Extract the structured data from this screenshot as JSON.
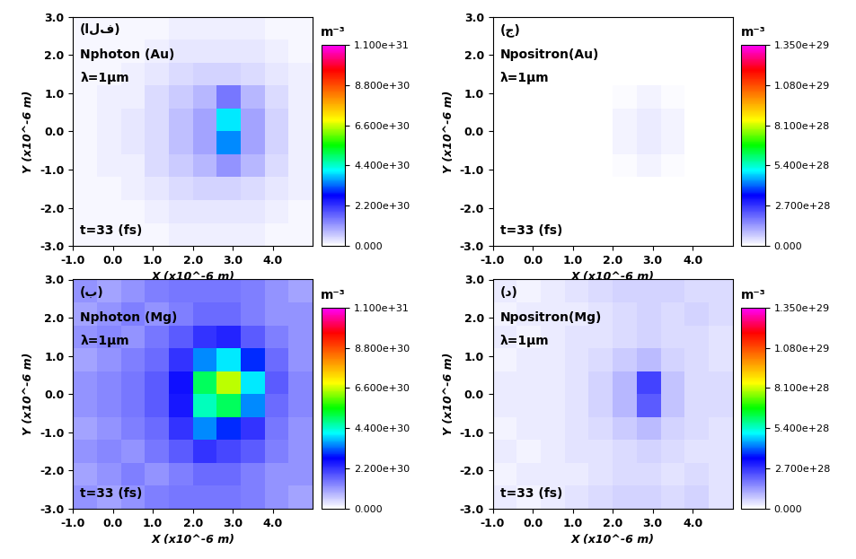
{
  "chart_data": [
    {
      "type": "heatmap",
      "panel": "(الف)",
      "quantity": "Nphoton (Au)",
      "wavelength": "λ=1μm",
      "time": "t=33 (fs)",
      "x_label": "X (x10^-6 m)",
      "y_label": "Y (x10^-6 m)",
      "xlim": [
        -1.0,
        5.0
      ],
      "ylim": [
        -3.0,
        3.0
      ],
      "xticks": [
        -1.0,
        0.0,
        1.0,
        2.0,
        3.0,
        4.0
      ],
      "yticks": [
        -3.0,
        -2.0,
        -1.0,
        0.0,
        1.0,
        2.0,
        3.0
      ],
      "cells": [
        [
          1e+29,
          1e+29,
          1e+29,
          1e+29,
          2e+29,
          2e+29,
          2e+29,
          2e+29,
          1e+29,
          1e+29
        ],
        [
          1e+29,
          1e+29,
          1e+29,
          2e+29,
          3e+29,
          3e+29,
          3e+29,
          3e+29,
          2e+29,
          1e+29
        ],
        [
          1e+29,
          1e+29,
          2e+29,
          3e+29,
          4e+29,
          5e+29,
          5e+29,
          4e+29,
          3e+29,
          2e+29
        ],
        [
          1e+29,
          2e+29,
          2e+29,
          4e+29,
          6e+29,
          8e+29,
          1.2e+30,
          8e+29,
          4e+29,
          2e+29
        ],
        [
          1e+29,
          2e+29,
          3e+29,
          4e+29,
          7e+29,
          1e+30,
          3.5e+30,
          1e+30,
          5e+29,
          2e+29
        ],
        [
          1e+29,
          2e+29,
          3e+29,
          4e+29,
          7e+29,
          1e+30,
          4e+30,
          1e+30,
          5e+29,
          2e+29
        ],
        [
          1e+29,
          2e+29,
          2e+29,
          4e+29,
          6e+29,
          8e+29,
          1.5e+30,
          8e+29,
          4e+29,
          2e+29
        ],
        [
          1e+29,
          1e+29,
          2e+29,
          3e+29,
          4e+29,
          5e+29,
          5e+29,
          4e+29,
          3e+29,
          2e+29
        ],
        [
          1e+29,
          1e+29,
          1e+29,
          2e+29,
          3e+29,
          3e+29,
          3e+29,
          3e+29,
          2e+29,
          1e+29
        ],
        [
          1e+29,
          1e+29,
          1e+29,
          1e+29,
          2e+29,
          2e+29,
          2e+29,
          2e+29,
          1e+29,
          1e+29
        ]
      ],
      "colorbar": {
        "label": "m⁻³",
        "range": [
          0,
          1.1e+31
        ],
        "ticks": [
          {
            "value": 1.1e+31,
            "label": "1.100e+31"
          },
          {
            "value": 8.8e+30,
            "label": "8.800e+30"
          },
          {
            "value": 6.6e+30,
            "label": "6.600e+30"
          },
          {
            "value": 4.4e+30,
            "label": "4.400e+30"
          },
          {
            "value": 2.2e+30,
            "label": "2.200e+30"
          },
          {
            "value": 0,
            "label": "0.000"
          }
        ]
      }
    },
    {
      "type": "heatmap",
      "panel": "(ج)",
      "quantity": "Npositron(Au)",
      "wavelength": "λ=1μm",
      "time": "t=33 (fs)",
      "x_label": "X (x10^-6 m)",
      "y_label": "Y (x10^-6 m)",
      "xlim": [
        -1.0,
        5.0
      ],
      "ylim": [
        -3.0,
        3.0
      ],
      "xticks": [
        -1.0,
        0.0,
        1.0,
        2.0,
        3.0,
        4.0
      ],
      "yticks": [
        -3.0,
        -2.0,
        -1.0,
        0.0,
        1.0,
        2.0,
        3.0
      ],
      "cells": [
        [
          0,
          0,
          0,
          0,
          0,
          0,
          0,
          0,
          0,
          0
        ],
        [
          0,
          0,
          0,
          0,
          0,
          0,
          0,
          0,
          0,
          0
        ],
        [
          0,
          0,
          0,
          0,
          0,
          5e+26,
          5e+26,
          0,
          0,
          0
        ],
        [
          0,
          0,
          0,
          0,
          5e+26,
          1e+27,
          2e+27,
          1e+27,
          0,
          0
        ],
        [
          0,
          0,
          0,
          0,
          5e+26,
          2e+27,
          3e+27,
          2e+27,
          5e+26,
          0
        ],
        [
          0,
          0,
          0,
          0,
          5e+26,
          2e+27,
          3e+27,
          2e+27,
          5e+26,
          0
        ],
        [
          0,
          0,
          0,
          0,
          0,
          1e+27,
          2e+27,
          1e+27,
          0,
          0
        ],
        [
          0,
          0,
          0,
          0,
          0,
          5e+26,
          5e+26,
          0,
          0,
          0
        ],
        [
          0,
          0,
          0,
          0,
          0,
          0,
          0,
          0,
          0,
          0
        ],
        [
          0,
          0,
          0,
          0,
          0,
          0,
          0,
          0,
          0,
          0
        ]
      ],
      "colorbar": {
        "label": "m⁻³",
        "range": [
          0,
          1.35e+29
        ],
        "ticks": [
          {
            "value": 1.35e+29,
            "label": "1.350e+29"
          },
          {
            "value": 1.08e+29,
            "label": "1.080e+29"
          },
          {
            "value": 8.1e+28,
            "label": "8.100e+28"
          },
          {
            "value": 5.4e+28,
            "label": "5.400e+28"
          },
          {
            "value": 2.7e+28,
            "label": "2.700e+28"
          },
          {
            "value": 0,
            "label": "0.000"
          }
        ]
      }
    },
    {
      "type": "heatmap",
      "panel": "(ب)",
      "quantity": "Nphoton (Mg)",
      "wavelength": "λ=1μm",
      "time": "t=33 (fs)",
      "x_label": "X (x10^-6 m)",
      "y_label": "Y (x10^-6 m)",
      "xlim": [
        -1.0,
        5.0
      ],
      "ylim": [
        -3.0,
        3.0
      ],
      "xticks": [
        -1.0,
        0.0,
        1.0,
        2.0,
        3.0,
        4.0
      ],
      "yticks": [
        -3.0,
        -2.0,
        -1.0,
        0.0,
        1.0,
        2.0,
        3.0
      ],
      "cells": [
        [
          1.2e+30,
          1e+30,
          1.2e+30,
          1.4e+30,
          1.5e+30,
          1.5e+30,
          1.5e+30,
          1.4e+30,
          1.2e+30,
          1e+30
        ],
        [
          1e+30,
          1.2e+30,
          1.4e+30,
          1.2e+30,
          1.4e+30,
          1.6e+30,
          1.6e+30,
          1.4e+30,
          1.2e+30,
          1.2e+30
        ],
        [
          1.2e+30,
          1.3e+30,
          1.2e+30,
          1.5e+30,
          1.8e+30,
          2.2e+30,
          2e+30,
          1.8e+30,
          1.4e+30,
          1.2e+30
        ],
        [
          1e+30,
          1.2e+30,
          1.4e+30,
          1.6e+30,
          2.2e+30,
          3.5e+30,
          3e+30,
          2.2e+30,
          1.5e+30,
          1.2e+30
        ],
        [
          1.2e+30,
          1.3e+30,
          1.5e+30,
          1.8e+30,
          2.5e+30,
          4.5e+30,
          5e+30,
          3.5e+30,
          1.6e+30,
          1.3e+30
        ],
        [
          1.2e+30,
          1.3e+30,
          1.5e+30,
          1.8e+30,
          2.6e+30,
          5e+30,
          6.5e+30,
          4e+30,
          1.8e+30,
          1.3e+30
        ],
        [
          1e+30,
          1.2e+30,
          1.4e+30,
          1.6e+30,
          2.2e+30,
          3.5e+30,
          4e+30,
          3e+30,
          1.6e+30,
          1.2e+30
        ],
        [
          1.2e+30,
          1.3e+30,
          1.2e+30,
          1.5e+30,
          1.8e+30,
          2.2e+30,
          2.4e+30,
          1.8e+30,
          1.4e+30,
          1.2e+30
        ],
        [
          1e+30,
          1.2e+30,
          1.4e+30,
          1.2e+30,
          1.4e+30,
          1.6e+30,
          1.6e+30,
          1.4e+30,
          1.2e+30,
          1.2e+30
        ],
        [
          1.2e+30,
          1e+30,
          1.2e+30,
          1.4e+30,
          1.5e+30,
          1.5e+30,
          1.5e+30,
          1.4e+30,
          1.2e+30,
          1e+30
        ]
      ],
      "colorbar": {
        "label": "m⁻³",
        "range": [
          0,
          1.1e+31
        ],
        "ticks": [
          {
            "value": 1.1e+31,
            "label": "1.100e+31"
          },
          {
            "value": 8.8e+30,
            "label": "8.800e+30"
          },
          {
            "value": 6.6e+30,
            "label": "6.600e+30"
          },
          {
            "value": 4.4e+30,
            "label": "4.400e+30"
          },
          {
            "value": 2.2e+30,
            "label": "2.200e+30"
          },
          {
            "value": 0,
            "label": "0.000"
          }
        ]
      }
    },
    {
      "type": "heatmap",
      "panel": "(د)",
      "quantity": "Npositron(Mg)",
      "wavelength": "λ=1μm",
      "time": "t=33 (fs)",
      "x_label": "X (x10^-6 m)",
      "y_label": "Y (x10^-6 m)",
      "xlim": [
        -1.0,
        5.0
      ],
      "ylim": [
        -3.0,
        3.0
      ],
      "xticks": [
        -1.0,
        0.0,
        1.0,
        2.0,
        3.0,
        4.0
      ],
      "yticks": [
        -3.0,
        -2.0,
        -1.0,
        0.0,
        1.0,
        2.0,
        3.0
      ],
      "cells": [
        [
          3e+27,
          2e+27,
          3e+27,
          4e+27,
          5e+27,
          6e+27,
          6e+27,
          5e+27,
          6e+27,
          4e+27
        ],
        [
          2e+27,
          3e+27,
          3e+27,
          3e+27,
          4e+27,
          5e+27,
          5e+27,
          4e+27,
          5e+27,
          4e+27
        ],
        [
          3e+27,
          2e+27,
          3e+27,
          4e+27,
          4e+27,
          5e+27,
          6e+27,
          5e+27,
          4e+27,
          4e+27
        ],
        [
          2e+27,
          3e+27,
          3e+27,
          4e+27,
          5e+27,
          7e+27,
          9e+27,
          6e+27,
          5e+27,
          4e+27
        ],
        [
          3e+27,
          3e+27,
          3e+27,
          4e+27,
          6e+27,
          1e+28,
          2.2e+28,
          8e+27,
          5e+27,
          5e+27
        ],
        [
          3e+27,
          3e+27,
          3e+27,
          4e+27,
          6e+27,
          1e+28,
          2.5e+28,
          8e+27,
          5e+27,
          5e+27
        ],
        [
          2e+27,
          3e+27,
          3e+27,
          4e+27,
          5e+27,
          7e+27,
          9e+27,
          6e+27,
          5e+27,
          4e+27
        ],
        [
          3e+27,
          2e+27,
          3e+27,
          4e+27,
          4e+27,
          5e+27,
          6e+27,
          5e+27,
          5e+27,
          4e+27
        ],
        [
          2e+27,
          3e+27,
          3e+27,
          3e+27,
          4e+27,
          5e+27,
          6e+27,
          5e+27,
          6e+27,
          5e+27
        ],
        [
          3e+27,
          2e+27,
          3e+27,
          4e+27,
          5e+27,
          6e+27,
          6e+27,
          6e+27,
          5e+27,
          5e+27
        ]
      ],
      "colorbar": {
        "label": "m⁻³",
        "range": [
          0,
          1.35e+29
        ],
        "ticks": [
          {
            "value": 1.35e+29,
            "label": "1.350e+29"
          },
          {
            "value": 1.08e+29,
            "label": "1.080e+29"
          },
          {
            "value": 8.1e+28,
            "label": "8.100e+28"
          },
          {
            "value": 5.4e+28,
            "label": "5.400e+28"
          },
          {
            "value": 2.7e+28,
            "label": "2.700e+28"
          },
          {
            "value": 0,
            "label": "0.000"
          }
        ]
      }
    }
  ]
}
